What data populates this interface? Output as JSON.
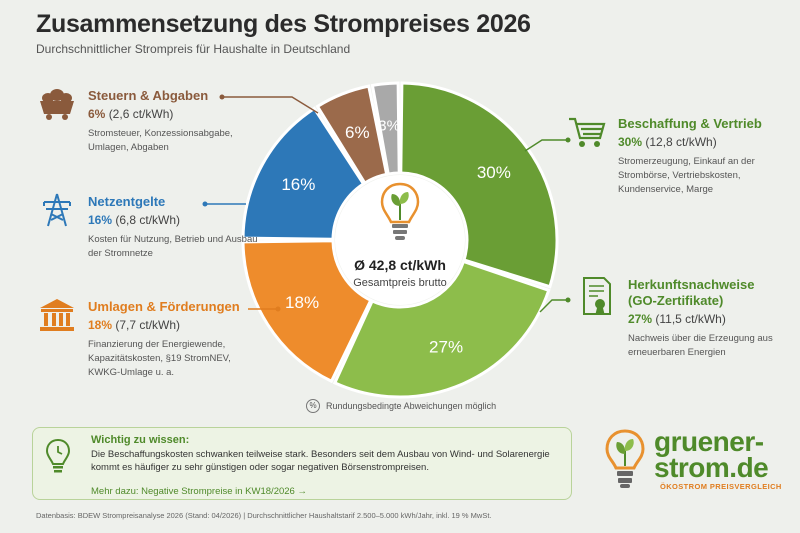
{
  "title": "Zusammensetzung des Strompreises 2026",
  "subtitle": "Durchschnittlicher Strompreis für Haushalte in Deutschland",
  "chart_data": {
    "type": "pie",
    "title": "Zusammensetzung des Strompreises 2026",
    "unit": "%",
    "categories": [
      "Beschaffung & Vertrieb",
      "Herkunftsnachweise (GO-Zertifikate)",
      "Umlagen & Förderungen",
      "Netzentgelte",
      "Steuern & Abgaben",
      ""
    ],
    "values": [
      30,
      27,
      18,
      16,
      6,
      3
    ],
    "labels": [
      "30%",
      "27%",
      "18%",
      "16%",
      "6%",
      "3%"
    ],
    "colors": [
      "#6a9e35",
      "#8dbd4b",
      "#ee8c2c",
      "#2d78b8",
      "#9b6a4b",
      "#a9a9a9"
    ],
    "center_value": "Ø 42,8 ct/kWh",
    "center_label": "Gesamtpreis brutto"
  },
  "callouts": {
    "steuern": {
      "title": "Steuern & Abgaben",
      "pct": "6%",
      "ct": "(2,6 ct/kWh)",
      "desc": "Stromsteuer, Konzessionsabgabe, Umlagen, Abgaben",
      "icon": "coal-cart-icon"
    },
    "netz": {
      "title": "Netzentgelte",
      "pct": "16%",
      "ct": "(6,8 ct/kWh)",
      "desc": "Kosten für Nutzung, Betrieb und Ausbau der Stromnetze",
      "icon": "power-pylon-icon"
    },
    "umlagen": {
      "title": "Umlagen & Förderungen",
      "pct": "18%",
      "ct": "(7,7 ct/kWh)",
      "desc": "Finanzierung der Energiewende, Kapazitätskosten, §19 StromNEV, KWKG-Umlage u. a.",
      "icon": "government-building-icon"
    },
    "beschaffung": {
      "title": "Beschaffung & Vertrieb",
      "pct": "30%",
      "ct": "(12,8 ct/kWh)",
      "desc": "Stromerzeugung, Einkauf an der Strombörse, Vertriebskosten, Kundenservice, Marge",
      "icon": "shopping-cart-icon"
    },
    "herkunft": {
      "title": "Herkunftsnachweise (GO-Zertifikate)",
      "pct": "27%",
      "ct": "(11,5 ct/kWh)",
      "desc": "Nachweis über die Erzeugung aus erneuerbaren Energien",
      "icon": "certificate-icon"
    }
  },
  "note": {
    "symbol": "%",
    "text": "Rundungsbedingte Abweichungen möglich"
  },
  "info": {
    "heading": "Wichtig zu wissen:",
    "text": "Die Beschaffungskosten schwanken teilweise stark. Besonders seit dem Ausbau von Wind- und Solarenergie kommt es häufiger zu sehr günstigen oder sogar negativen Börsenstrompreisen.",
    "link": "Mehr dazu: Negative Strompreise in KW18/2026  →"
  },
  "brand": {
    "line1": "gruener-",
    "line2": "strom.de",
    "tagline": "ÖKOSTROM PREISVERGLEICH"
  },
  "footer": "Datenbasis: BDEW Strompreisanalyse 2026 (Stand: 04/2026) | Durchschnittlicher Haushaltstarif 2.500–5.000 kWh/Jahr, inkl. 19 % MwSt."
}
